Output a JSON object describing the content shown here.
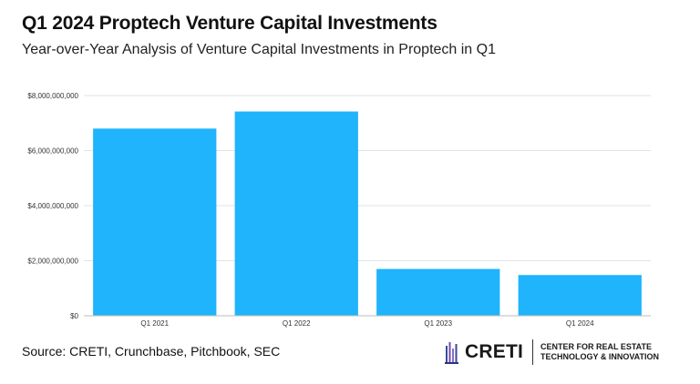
{
  "header": {
    "title": "Q1 2024 Proptech Venture Capital Investments",
    "subtitle": "Year-over-Year Analysis of Venture Capital Investments in Proptech in Q1"
  },
  "chart_data": {
    "type": "bar",
    "categories": [
      "Q1 2021",
      "Q1 2022",
      "Q1 2023",
      "Q1 2024"
    ],
    "values": [
      6800000000,
      7420000000,
      1700000000,
      1480000000
    ],
    "yticks": [
      0,
      2000000000,
      4000000000,
      6000000000,
      8000000000
    ],
    "ytick_labels": [
      "$0",
      "$2,000,000,000",
      "$4,000,000,000",
      "$6,000,000,000",
      "$8,000,000,000"
    ],
    "ylim": [
      0,
      8000000000
    ],
    "bar_color": "#1fb4fb",
    "grid_color": "#e3e3e3",
    "grid": true
  },
  "footer": {
    "source": "Source: CRETI, Crunchbase, Pitchbook, SEC",
    "logo_name": "CRETI",
    "logo_tagline_1": "CENTER FOR REAL ESTATE",
    "logo_tagline_2": "TECHNOLOGY & INNOVATION"
  }
}
